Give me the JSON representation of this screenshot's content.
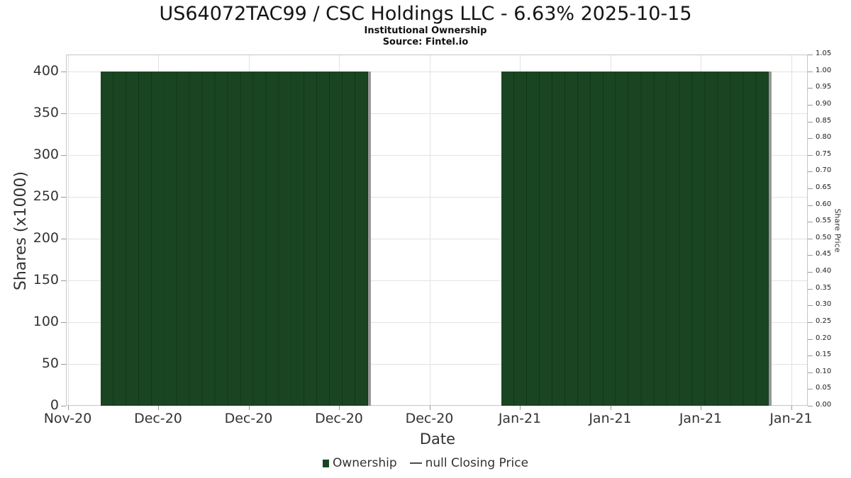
{
  "title": "US64072TAC99 / CSC Holdings LLC - 6.63% 2025-10-15",
  "subtitle": "Institutional Ownership",
  "source": "Source: Fintel.io",
  "axes": {
    "x_title": "Date",
    "y_left_title": "Shares (x1000)",
    "y_right_title": "Share Price"
  },
  "colors": {
    "bar": "#1a4522",
    "bar_separator": "#11361a",
    "bar_shadow": "#979797",
    "grid": "#e2e2e2",
    "plot_border": "#c6c6c6",
    "tick": "#999999",
    "tick_text": "#333333",
    "legend_dash": "#4d4d4d"
  },
  "legend": {
    "items": [
      {
        "label": "Ownership",
        "marker": "square",
        "color": "#1a4522"
      },
      {
        "label": "null Closing Price",
        "marker": "dash",
        "color": "#4d4d4d"
      }
    ]
  },
  "chart_data": {
    "type": "bar",
    "title": "US64072TAC99 / CSC Holdings LLC - 6.63% 2025-10-15",
    "subtitle": "Institutional Ownership",
    "source": "Source: Fintel.io",
    "xlabel": "Date",
    "ylabel_left": "Shares (x1000)",
    "ylabel_right": "Share Price",
    "x_tick_labels": [
      "Nov-20",
      "Dec-20",
      "Dec-20",
      "Dec-20",
      "Dec-20",
      "Jan-21",
      "Jan-21",
      "Jan-21",
      "Jan-21"
    ],
    "y_left_ticks": [
      400,
      350,
      300,
      250,
      200,
      150,
      100,
      50,
      0
    ],
    "y_left_range": [
      0,
      420
    ],
    "y_right_tick_labels": [
      "1.05",
      "1.00",
      "0.95",
      "0.90",
      "0.85",
      "0.80",
      "0.75",
      "0.70",
      "0.65",
      "0.60",
      "0.55",
      "0.50",
      "0.45",
      "0.40",
      "0.35",
      "0.30",
      "0.25",
      "0.20",
      "0.15",
      "0.10",
      "0.05",
      "0.00"
    ],
    "y_right_range": [
      0,
      1.05
    ],
    "grid": true,
    "legend_position": "bottom",
    "series": [
      {
        "name": "Ownership",
        "type": "bar",
        "color": "#1a4522",
        "units": "shares x1000",
        "segments": [
          {
            "start_frac": 0.0469,
            "end_frac": 0.4111,
            "bar_count": 21,
            "value": 400
          },
          {
            "start_frac": 0.5867,
            "end_frac": 0.9512,
            "bar_count": 21,
            "value": 400
          }
        ]
      },
      {
        "name": "null Closing Price",
        "type": "line",
        "color": "#4d4d4d",
        "values": null
      }
    ]
  }
}
